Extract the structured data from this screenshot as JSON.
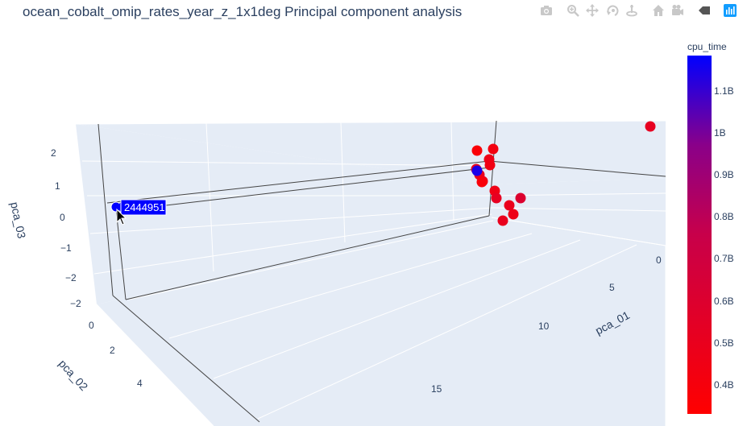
{
  "title": "ocean_cobalt_omip_rates_year_z_1x1deg Principal component analysis",
  "modebar": {
    "buttons": [
      "camera-icon",
      "zoom-icon",
      "pan-icon",
      "orbit-rotation-icon",
      "turntable-rotation-icon",
      "reset-camera-icon",
      "save-camera-icon",
      "toggle-hover-icon",
      "plotly-logo-icon"
    ]
  },
  "colors": {
    "scene_bg": "#e5ecf6",
    "grid": "#ffffff",
    "crosshair": "#444444",
    "colorscale_low": "#ff0000",
    "colorscale_high": "#0000ff"
  },
  "chart_data": {
    "type": "scatter",
    "mode": "markers-3d",
    "title": "ocean_cobalt_omip_rates_year_z_1x1deg Principal component analysis",
    "axes": {
      "x": {
        "label": "pca_01",
        "ticks": [
          "0",
          "5",
          "10",
          "15"
        ]
      },
      "y": {
        "label": "pca_02",
        "ticks": [
          "0",
          "2",
          "4"
        ]
      },
      "z": {
        "label": "pca_03",
        "ticks": [
          "2",
          "1",
          "0",
          "−1",
          "−2",
          "−2"
        ]
      }
    },
    "color_by": "cpu_time",
    "colorbar": {
      "title": "cpu_time",
      "ticks": [
        "1.1B",
        "1B",
        "0.9B",
        "0.8B",
        "0.7B",
        "0.6B",
        "0.5B",
        "0.4B"
      ]
    },
    "hover": {
      "label": "2444951",
      "color": "#0000ff"
    },
    "points": [
      {
        "pca_01": 0.0,
        "pca_02": 0.3,
        "pca_03": 2.6,
        "cpu_time": 0.52
      },
      {
        "pca_01": 5.8,
        "pca_02": 0.5,
        "pca_03": 1.8,
        "cpu_time": 0.37
      },
      {
        "pca_01": 5.6,
        "pca_02": 0.6,
        "pca_03": 1.7,
        "cpu_time": 0.42
      },
      {
        "pca_01": 5.7,
        "pca_02": 0.6,
        "pca_03": 1.4,
        "cpu_time": 0.46
      },
      {
        "pca_01": 5.8,
        "pca_02": 0.7,
        "pca_03": 1.2,
        "cpu_time": 0.44
      },
      {
        "pca_01": 6.0,
        "pca_02": 0.8,
        "pca_03": 0.9,
        "cpu_time": 0.47
      },
      {
        "pca_01": 6.1,
        "pca_02": 0.8,
        "pca_03": 0.7,
        "cpu_time": 0.5
      },
      {
        "pca_01": 6.2,
        "pca_02": 0.9,
        "pca_03": 0.5,
        "cpu_time": 0.48
      },
      {
        "pca_01": 6.3,
        "pca_02": 0.9,
        "pca_03": 0.3,
        "cpu_time": 0.45
      },
      {
        "pca_01": 6.4,
        "pca_02": 1.0,
        "pca_03": 0.1,
        "cpu_time": 0.52
      },
      {
        "pca_01": 6.5,
        "pca_02": 1.0,
        "pca_03": -0.1,
        "cpu_time": 0.6
      },
      {
        "pca_01": 5.9,
        "pca_02": 1.1,
        "pca_03": -0.1,
        "cpu_time": 0.49
      },
      {
        "pca_01": 6.6,
        "pca_02": 1.1,
        "pca_03": -0.3,
        "cpu_time": 0.47
      },
      {
        "pca_01": 6.7,
        "pca_02": 1.2,
        "pca_03": -0.5,
        "cpu_time": 0.5
      },
      {
        "pca_01": 6.8,
        "pca_02": 1.2,
        "pca_03": -0.7,
        "cpu_time": 0.38
      },
      {
        "pca_01": 16.5,
        "pca_02": 0.4,
        "pca_03": 0.0,
        "cpu_time": 1.15
      }
    ]
  }
}
